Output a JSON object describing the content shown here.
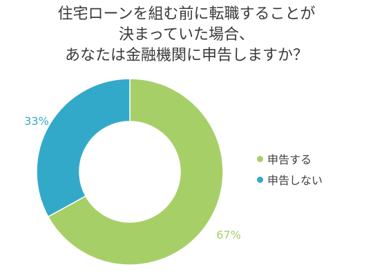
{
  "title": {
    "lines": [
      "住宅ローンを組む前に転職することが",
      "決まっていた場合、",
      "あなたは金融機関に申告しますか？"
    ]
  },
  "chart_data": {
    "type": "pie",
    "donut": true,
    "title": "住宅ローンを組む前に転職することが決まっていた場合、あなたは金融機関に申告しますか？",
    "series": [
      {
        "name": "申告する",
        "value": 67,
        "label": "67%",
        "color": "#a7cf67"
      },
      {
        "name": "申告しない",
        "value": 33,
        "label": "33%",
        "color": "#33a9c9"
      }
    ],
    "legend_position": "right",
    "start_angle": "top",
    "direction": "clockwise"
  }
}
